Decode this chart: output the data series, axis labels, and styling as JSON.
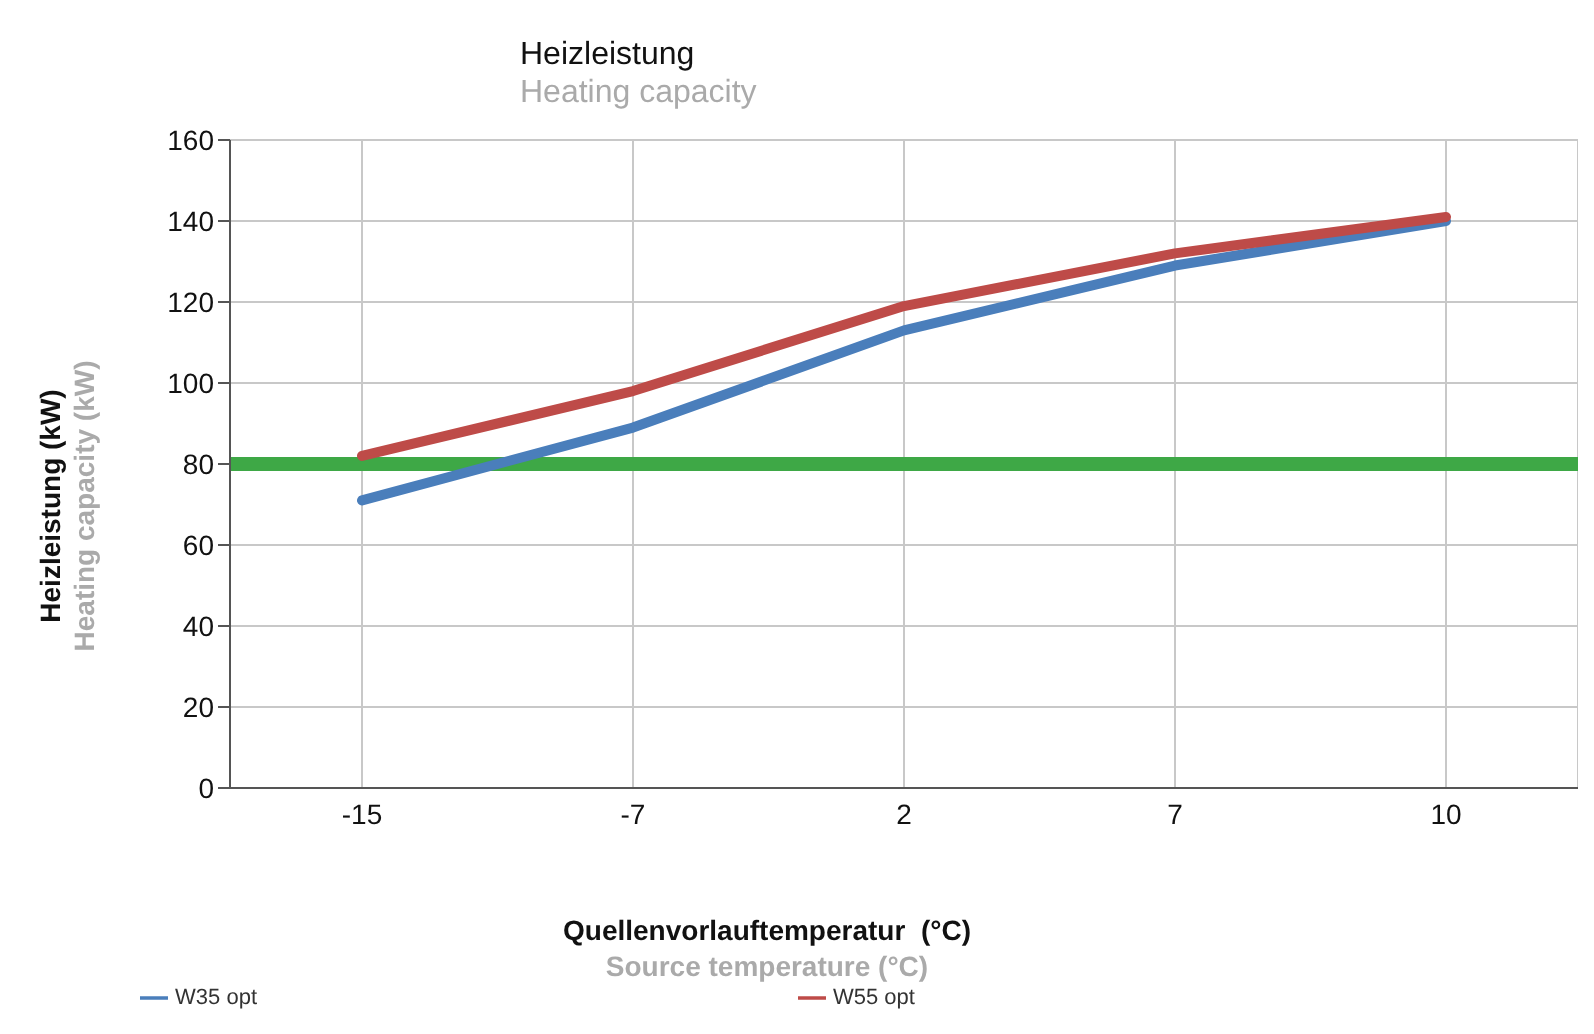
{
  "chart_data": {
    "type": "line",
    "title": "Heizleistung",
    "subtitle": "Heating capacity",
    "xlabel": "Quellenvorlauftemperatur  (°C)\nSource temperature (°C)",
    "ylabel": "Heizleistung (kW)\nHeating capacity (kW)",
    "categories": [
      "-15",
      "-7",
      "2",
      "7",
      "10"
    ],
    "series": [
      {
        "name": "W35 opt",
        "color": "#4a7ebb",
        "values": [
          71,
          89,
          113,
          129,
          140
        ]
      },
      {
        "name": "W55 opt",
        "color": "#be4b48",
        "values": [
          82,
          98,
          119,
          132,
          141
        ]
      }
    ],
    "ylim": [
      0,
      160
    ],
    "yticks": [
      0,
      20,
      40,
      60,
      80,
      100,
      120,
      140,
      160
    ],
    "ref_lines": [
      {
        "axis": "y",
        "value": 80,
        "color": "#3ea846"
      }
    ],
    "grid": true,
    "legend": "bottom",
    "marker": "none",
    "line_style": "solid"
  }
}
